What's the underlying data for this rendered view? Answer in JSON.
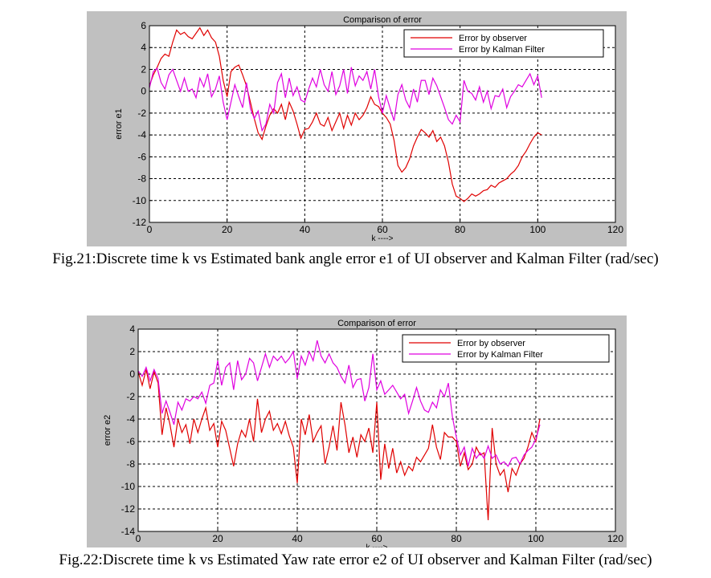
{
  "figures": [
    {
      "caption": "Fig.21:Discrete time k vs Estimated bank angle error e1 of UI observer and Kalman Filter (rad/sec)",
      "chart_data": {
        "type": "line",
        "title": "Comparison of  error",
        "xlabel": "k ---->",
        "ylabel": "error e1",
        "xlim": [
          0,
          120
        ],
        "ylim": [
          -12,
          6
        ],
        "xticks": [
          0,
          20,
          40,
          60,
          80,
          100,
          120
        ],
        "yticks": [
          -12,
          -10,
          -8,
          -6,
          -4,
          -2,
          0,
          2,
          4,
          6
        ],
        "grid": "dashed",
        "legend_position": "top-right",
        "series": [
          {
            "name": "Error by observer",
            "color": "#e00000",
            "x": [
              0,
              1,
              2,
              3,
              4,
              5,
              6,
              7,
              8,
              9,
              10,
              11,
              12,
              13,
              14,
              15,
              16,
              17,
              18,
              19,
              20,
              21,
              22,
              23,
              24,
              25,
              26,
              27,
              28,
              29,
              30,
              31,
              32,
              33,
              34,
              35,
              36,
              37,
              38,
              39,
              40,
              41,
              42,
              43,
              44,
              45,
              46,
              47,
              48,
              49,
              50,
              51,
              52,
              53,
              54,
              55,
              56,
              57,
              58,
              59,
              60,
              61,
              62,
              63,
              64,
              65,
              66,
              67,
              68,
              69,
              70,
              71,
              72,
              73,
              74,
              75,
              76,
              77,
              78,
              79,
              80,
              81,
              82,
              83,
              84,
              85,
              86,
              87,
              88,
              89,
              90,
              91,
              92,
              93,
              94,
              95,
              96,
              97,
              98,
              99,
              100,
              101
            ],
            "y": [
              0.5,
              1.5,
              2.2,
              3.0,
              3.4,
              3.2,
              4.5,
              5.6,
              5.2,
              5.4,
              5.0,
              4.8,
              5.3,
              5.8,
              5.1,
              5.6,
              4.9,
              4.5,
              3.2,
              1.0,
              -0.5,
              1.8,
              2.2,
              2.4,
              1.5,
              0.5,
              -1.0,
              -2.5,
              -3.8,
              -4.4,
              -3.2,
              -2.2,
              -1.6,
              -2.0,
              -1.2,
              -2.6,
              -1.0,
              -1.8,
              -3.0,
              -4.3,
              -3.5,
              -3.4,
              -2.8,
              -2.0,
              -3.0,
              -3.2,
              -2.4,
              -3.6,
              -2.8,
              -2.0,
              -3.4,
              -2.2,
              -3.1,
              -2.0,
              -2.6,
              -2.2,
              -1.5,
              -0.5,
              -1.2,
              -1.4,
              -2.0,
              -2.4,
              -3.0,
              -4.5,
              -6.8,
              -7.4,
              -7.0,
              -6.2,
              -5.0,
              -4.2,
              -3.5,
              -3.8,
              -4.2,
              -3.6,
              -4.6,
              -4.2,
              -5.0,
              -6.5,
              -8.5,
              -9.6,
              -9.8,
              -10.1,
              -9.8,
              -9.4,
              -9.6,
              -9.4,
              -9.1,
              -9.0,
              -8.6,
              -8.8,
              -8.4,
              -8.2,
              -8.0,
              -7.6,
              -7.3,
              -6.8,
              -6.0,
              -5.5,
              -4.8,
              -4.2,
              -3.8,
              -4.0
            ]
          },
          {
            "name": "Error by Kalman Filter",
            "color": "#e000e0",
            "x": [
              0,
              1,
              2,
              3,
              4,
              5,
              6,
              7,
              8,
              9,
              10,
              11,
              12,
              13,
              14,
              15,
              16,
              17,
              18,
              19,
              20,
              21,
              22,
              23,
              24,
              25,
              26,
              27,
              28,
              29,
              30,
              31,
              32,
              33,
              34,
              35,
              36,
              37,
              38,
              39,
              40,
              41,
              42,
              43,
              44,
              45,
              46,
              47,
              48,
              49,
              50,
              51,
              52,
              53,
              54,
              55,
              56,
              57,
              58,
              59,
              60,
              61,
              62,
              63,
              64,
              65,
              66,
              67,
              68,
              69,
              70,
              71,
              72,
              73,
              74,
              75,
              76,
              77,
              78,
              79,
              80,
              81,
              82,
              83,
              84,
              85,
              86,
              87,
              88,
              89,
              90,
              91,
              92,
              93,
              94,
              95,
              96,
              97,
              98,
              99,
              100,
              101
            ],
            "y": [
              0.3,
              1.8,
              2.1,
              0.8,
              0.2,
              1.5,
              2.0,
              1.0,
              0.0,
              1.2,
              0.0,
              0.2,
              -0.6,
              1.2,
              0.4,
              1.6,
              -0.5,
              0.2,
              1.4,
              -1.0,
              -2.6,
              -1.0,
              0.6,
              -0.5,
              -1.5,
              0.8,
              -1.6,
              -2.5,
              -1.8,
              -3.6,
              -3.0,
              -1.2,
              -2.0,
              0.8,
              1.6,
              -0.6,
              1.2,
              -0.4,
              0.4,
              -0.8,
              -1.0,
              0.2,
              1.2,
              0.4,
              2.0,
              0.6,
              0.0,
              1.8,
              -0.3,
              0.5,
              2.0,
              -0.2,
              2.2,
              0.5,
              1.4,
              1.0,
              1.8,
              0.2,
              2.0,
              -0.5,
              -2.0,
              -0.4,
              -1.6,
              -2.7,
              -0.3,
              0.6,
              -0.8,
              -1.5,
              0.2,
              -1.0,
              1.0,
              1.0,
              -0.3,
              1.2,
              0.5,
              -0.5,
              -1.5,
              -2.6,
              -3.0,
              -2.2,
              -2.8,
              1.0,
              0.0,
              -0.2,
              -0.8,
              0.4,
              -1.0,
              0.0,
              -1.6,
              -0.4,
              -0.5,
              0.2,
              -1.5,
              -0.5,
              0.0,
              0.6,
              0.4,
              1.0,
              1.6,
              0.6,
              1.4,
              -0.6
            ]
          }
        ]
      }
    },
    {
      "caption": "Fig.22:Discrete time k vs Estimated Yaw rate error e2 of UI observer and Kalman Filter (rad/sec)",
      "chart_data": {
        "type": "line",
        "title": "Comparison of  error",
        "xlabel": "k ---->",
        "ylabel": "error e2",
        "xlim": [
          0,
          120
        ],
        "ylim": [
          -14,
          4
        ],
        "xticks": [
          0,
          20,
          40,
          60,
          80,
          100,
          120
        ],
        "yticks": [
          -14,
          -12,
          -10,
          -8,
          -6,
          -4,
          -2,
          0,
          2,
          4
        ],
        "grid": "dashed",
        "legend_position": "top-right",
        "series": [
          {
            "name": "Error by observer",
            "color": "#e00000",
            "x": [
              0,
              1,
              2,
              3,
              4,
              5,
              6,
              7,
              8,
              9,
              10,
              11,
              12,
              13,
              14,
              15,
              16,
              17,
              18,
              19,
              20,
              21,
              22,
              23,
              24,
              25,
              26,
              27,
              28,
              29,
              30,
              31,
              32,
              33,
              34,
              35,
              36,
              37,
              38,
              39,
              40,
              41,
              42,
              43,
              44,
              45,
              46,
              47,
              48,
              49,
              50,
              51,
              52,
              53,
              54,
              55,
              56,
              57,
              58,
              59,
              60,
              61,
              62,
              63,
              64,
              65,
              66,
              67,
              68,
              69,
              70,
              71,
              72,
              73,
              74,
              75,
              76,
              77,
              78,
              79,
              80,
              81,
              82,
              83,
              84,
              85,
              86,
              87,
              88,
              89,
              90,
              91,
              92,
              93,
              94,
              95,
              96,
              97,
              98,
              99,
              100,
              101
            ],
            "y": [
              0.2,
              -1.0,
              0.4,
              -1.3,
              0.2,
              -0.8,
              -5.4,
              -3.0,
              -4.5,
              -6.5,
              -4.0,
              -5.2,
              -4.5,
              -6.2,
              -4.0,
              -5.2,
              -4.0,
              -3.0,
              -5.0,
              -4.4,
              -6.5,
              -4.2,
              -5.0,
              -6.6,
              -8.2,
              -6.2,
              -5.0,
              -5.6,
              -4.0,
              -6.0,
              -2.2,
              -5.2,
              -4.0,
              -3.3,
              -5.0,
              -4.4,
              -5.3,
              -4.2,
              -5.5,
              -6.5,
              -9.7,
              -4.0,
              -5.4,
              -3.6,
              -6.0,
              -5.2,
              -4.6,
              -8.0,
              -6.5,
              -4.6,
              -6.8,
              -2.5,
              -4.5,
              -7.0,
              -5.6,
              -7.4,
              -5.4,
              -6.0,
              -4.8,
              -7.0,
              -2.5,
              -9.4,
              -6.2,
              -8.4,
              -6.6,
              -8.8,
              -7.8,
              -9.0,
              -8.2,
              -8.6,
              -7.4,
              -7.8,
              -7.2,
              -6.6,
              -4.5,
              -6.5,
              -7.6,
              -5.2,
              -5.6,
              -5.6,
              -6.0,
              -8.2,
              -7.0,
              -8.5,
              -8.0,
              -6.5,
              -7.2,
              -7.0,
              -13.0,
              -4.8,
              -8.0,
              -9.0,
              -8.5,
              -10.5,
              -8.4,
              -9.0,
              -8.0,
              -7.5,
              -6.5,
              -5.2,
              -6.0,
              -4.0
            ]
          },
          {
            "name": "Error by Kalman Filter",
            "color": "#e000e0",
            "x": [
              0,
              1,
              2,
              3,
              4,
              5,
              6,
              7,
              8,
              9,
              10,
              11,
              12,
              13,
              14,
              15,
              16,
              17,
              18,
              19,
              20,
              21,
              22,
              23,
              24,
              25,
              26,
              27,
              28,
              29,
              30,
              31,
              32,
              33,
              34,
              35,
              36,
              37,
              38,
              39,
              40,
              41,
              42,
              43,
              44,
              45,
              46,
              47,
              48,
              49,
              50,
              51,
              52,
              53,
              54,
              55,
              56,
              57,
              58,
              59,
              60,
              61,
              62,
              63,
              64,
              65,
              66,
              67,
              68,
              69,
              70,
              71,
              72,
              73,
              74,
              75,
              76,
              77,
              78,
              79,
              80,
              81,
              82,
              83,
              84,
              85,
              86,
              87,
              88,
              89,
              90,
              91,
              92,
              93,
              94,
              95,
              96,
              97,
              98,
              99,
              100,
              101
            ],
            "y": [
              0.3,
              -0.2,
              0.6,
              -0.6,
              0.4,
              -0.4,
              -3.5,
              -2.4,
              -3.4,
              -4.5,
              -2.5,
              -3.2,
              -2.2,
              -2.4,
              -2.0,
              -2.2,
              -1.6,
              -2.6,
              -1.0,
              -0.8,
              1.2,
              -1.0,
              0.6,
              1.0,
              -1.4,
              1.2,
              -0.5,
              0.0,
              1.4,
              1.0,
              -0.6,
              0.6,
              1.8,
              0.6,
              1.6,
              1.2,
              1.6,
              1.0,
              1.4,
              2.0,
              -0.4,
              1.6,
              0.8,
              2.0,
              1.2,
              3.0,
              1.6,
              1.0,
              1.8,
              1.0,
              0.6,
              -0.2,
              -0.8,
              0.8,
              -1.2,
              -0.5,
              -0.4,
              -2.4,
              -1.2,
              1.8,
              -1.4,
              -0.6,
              -1.8,
              -1.4,
              -1.0,
              -1.6,
              -2.2,
              -1.8,
              -3.5,
              -2.4,
              -1.2,
              -2.4,
              -3.2,
              -3.4,
              -2.5,
              -3.0,
              -1.4,
              -2.0,
              -0.8,
              -3.8,
              -5.6,
              -7.2,
              -6.5,
              -8.2,
              -6.6,
              -7.5,
              -7.0,
              -7.5,
              -6.4,
              -7.5,
              -7.2,
              -8.0,
              -7.8,
              -8.2,
              -7.5,
              -7.4,
              -8.0,
              -7.2,
              -6.8,
              -6.5,
              -5.8,
              -4.5
            ]
          }
        ]
      }
    }
  ]
}
